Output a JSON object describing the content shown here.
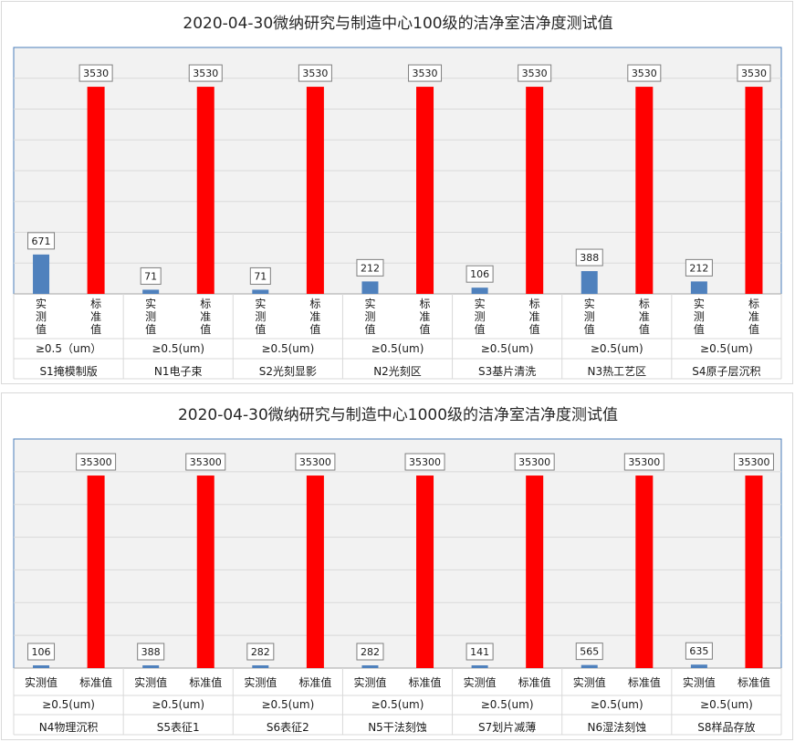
{
  "chart_data": [
    {
      "type": "bar",
      "title": "2020-04-30微纳研究与制造中心100级的洁净室洁净度测试值",
      "series_labels": [
        "实测值",
        "标准值"
      ],
      "particle_size": [
        "≥0.5（um）",
        "≥0.5(um)",
        "≥0.5(um)",
        "≥0.5(um)",
        "≥0.5(um)",
        "≥0.5(um)",
        "≥0.5(um)"
      ],
      "categories": [
        "S1掩模制版",
        "N1电子束",
        "S2光刻显影",
        "N2光刻区",
        "S3基片清洗",
        "N3热工艺区",
        "S4原子层沉积"
      ],
      "series": [
        {
          "values": [
            671,
            71,
            71,
            212,
            106,
            388,
            212
          ],
          "color": "#4f81bd"
        },
        {
          "values": [
            3530,
            3530,
            3530,
            3530,
            3530,
            3530,
            3530
          ],
          "color": "#ff0000"
        }
      ],
      "ylim": [
        0,
        4200
      ],
      "grid": true
    },
    {
      "type": "bar",
      "title": "2020-04-30微纳研究与制造中心1000级的洁净室洁净度测试值",
      "series_labels": [
        "实测值",
        "标准值"
      ],
      "particle_size": [
        "≥0.5(um)",
        "≥0.5(um)",
        "≥0.5(um)",
        "≥0.5(um)",
        "≥0.5(um)",
        "≥0.5(um)",
        "≥0.5(um)"
      ],
      "categories": [
        "N4物理沉积",
        "S5表征1",
        "S6表征2",
        "N5干法刻蚀",
        "S7划片减薄",
        "N6湿法刻蚀",
        "S8样品存放"
      ],
      "series": [
        {
          "values": [
            106,
            388,
            282,
            282,
            141,
            565,
            635
          ],
          "color": "#4f81bd"
        },
        {
          "values": [
            35300,
            35300,
            35300,
            35300,
            35300,
            35300,
            35300
          ],
          "color": "#ff0000"
        }
      ],
      "ylim": [
        0,
        42000
      ],
      "grid": true
    }
  ]
}
